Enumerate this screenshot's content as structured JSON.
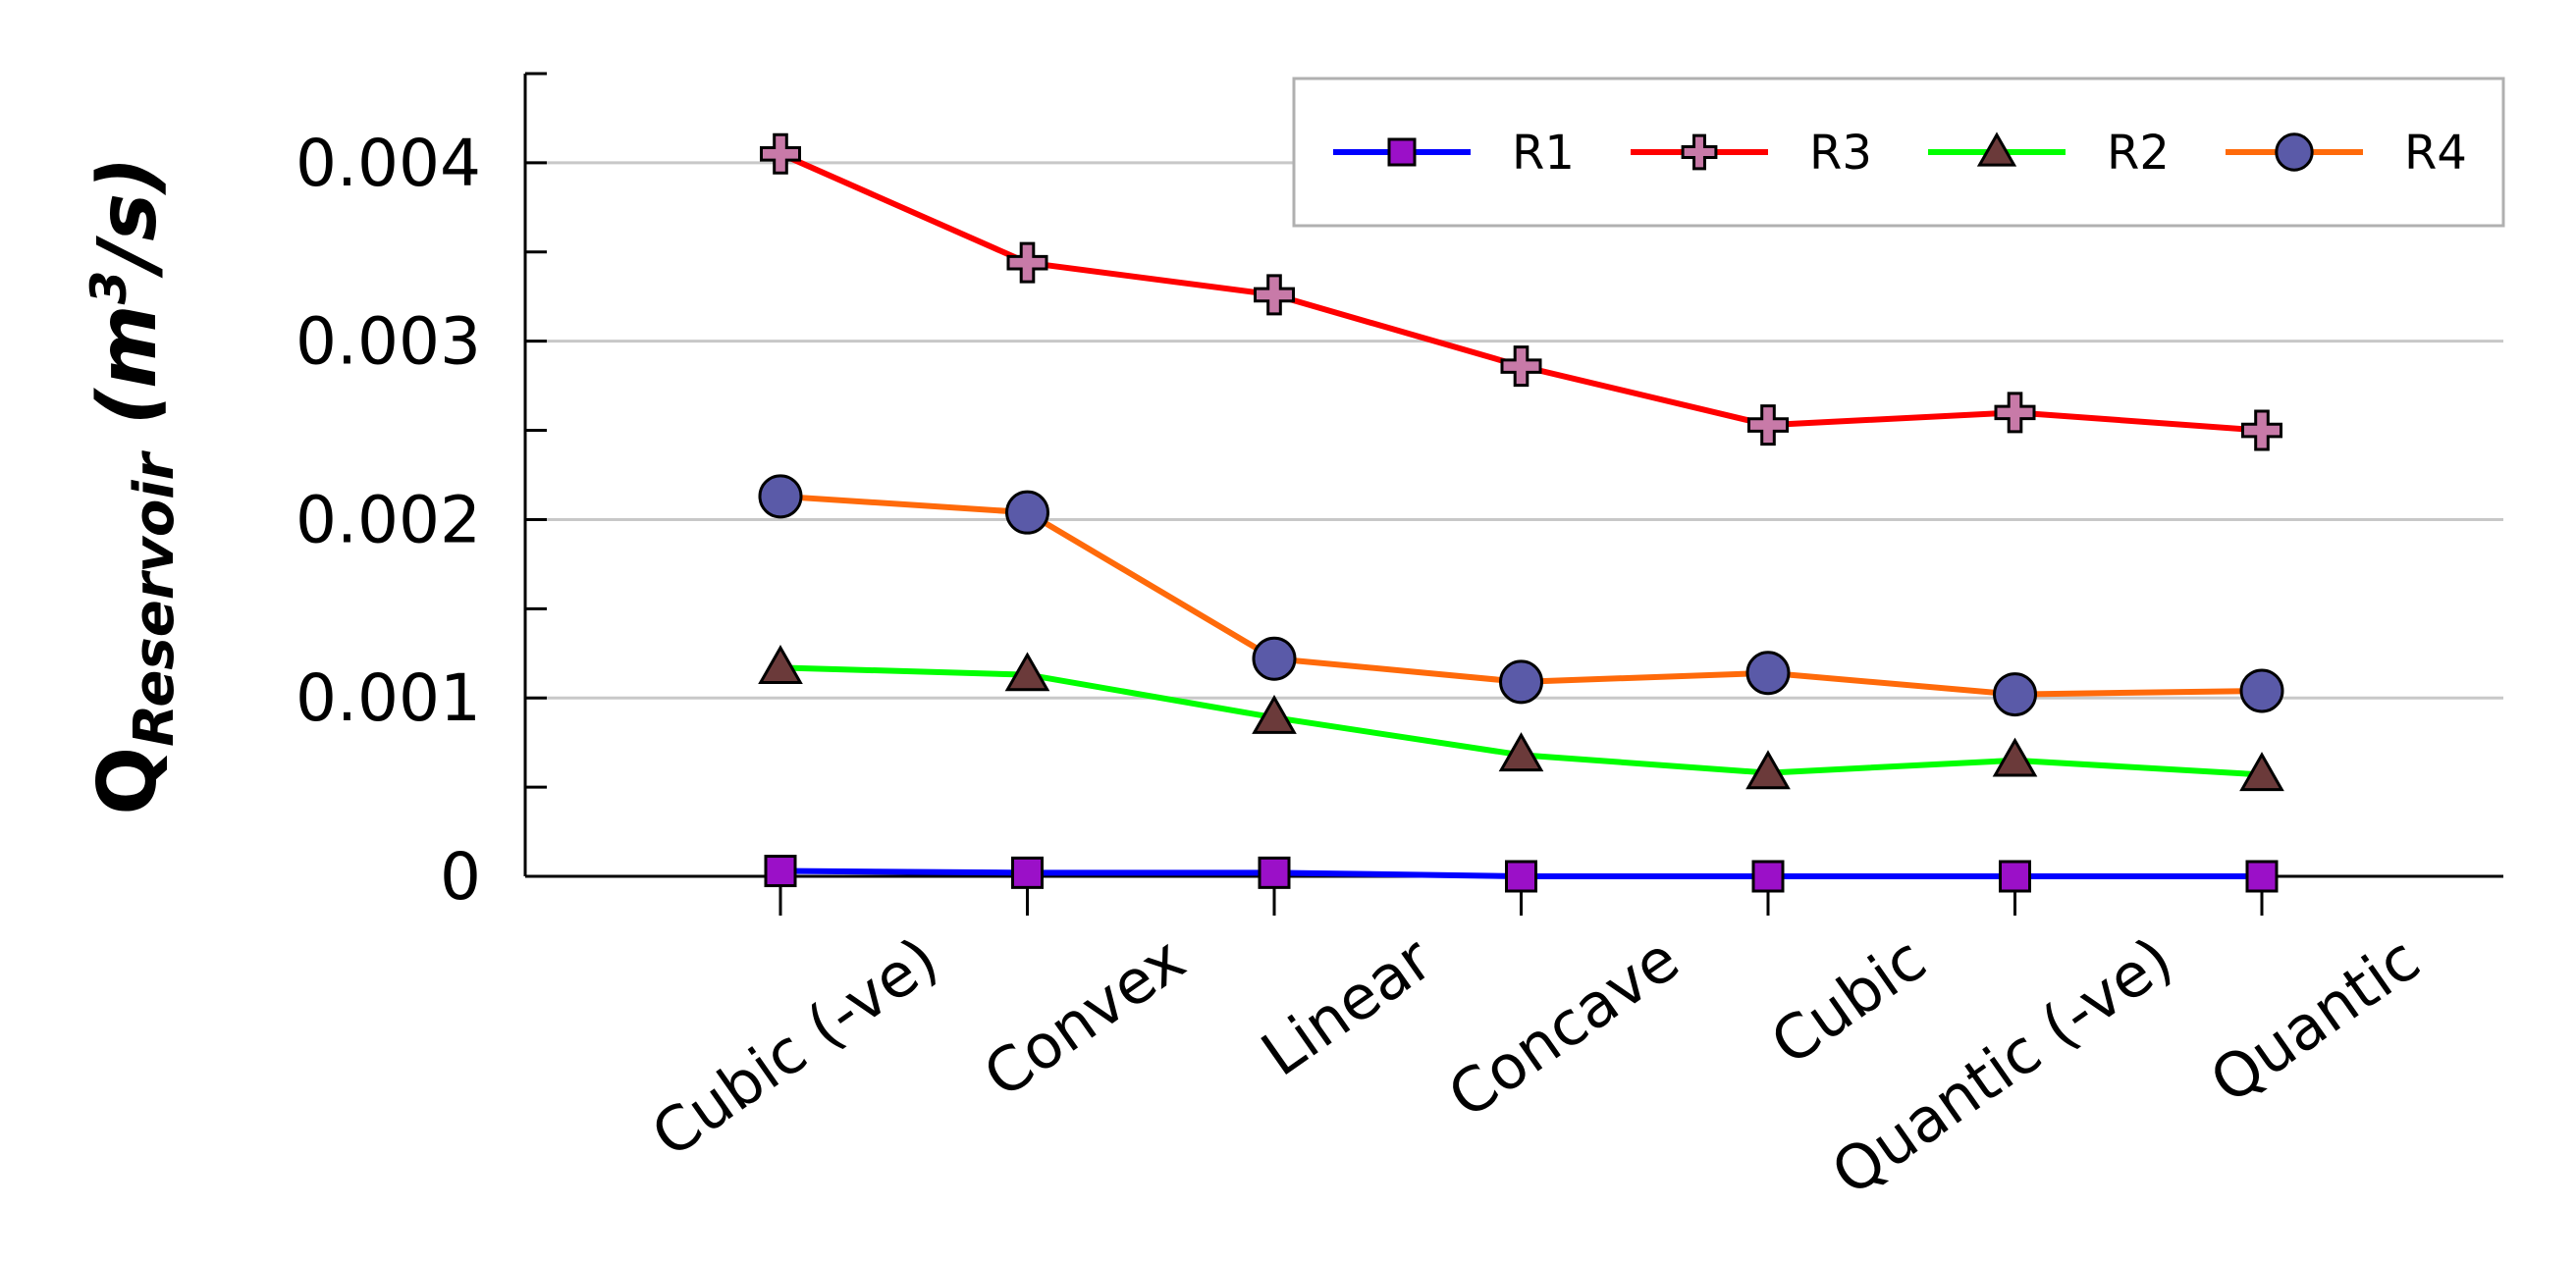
{
  "chart_data": {
    "type": "line",
    "title": "",
    "xlabel": "",
    "ylabel": {
      "main": "Q",
      "subscript": "Reservoir",
      "units_prefix": " (m",
      "units_superscript": "3",
      "units_suffix": "/s)"
    },
    "categories": [
      "Cubic (-ve)",
      "Convex",
      "Linear",
      "Concave",
      "Cubic",
      "Quantic (-ve)",
      "Quantic"
    ],
    "ylim": [
      0,
      0.0045
    ],
    "yticks": [
      0,
      0.001,
      0.002,
      0.003,
      0.004
    ],
    "ytick_labels": [
      "0",
      "0.001",
      "0.002",
      "0.003",
      "0.004"
    ],
    "grid": true,
    "legend_position": "top-right",
    "legend_order": [
      "R1",
      "R3",
      "R2",
      "R4"
    ],
    "series": [
      {
        "name": "R1",
        "color": "#0000ff",
        "marker": "square",
        "marker_fill": "#9b10c8",
        "values": [
          3e-05,
          2e-05,
          2e-05,
          0.0,
          0.0,
          0.0,
          0.0
        ]
      },
      {
        "name": "R2",
        "color": "#00ff00",
        "marker": "triangle",
        "marker_fill": "#6b3a3a",
        "values": [
          0.00117,
          0.00113,
          0.00089,
          0.00068,
          0.00058,
          0.00065,
          0.00057
        ]
      },
      {
        "name": "R3",
        "color": "#ff0000",
        "marker": "plus",
        "marker_fill": "#c87aa8",
        "values": [
          0.00405,
          0.00344,
          0.00326,
          0.00286,
          0.00253,
          0.0026,
          0.0025
        ]
      },
      {
        "name": "R4",
        "color": "#ff6a0a",
        "marker": "circle",
        "marker_fill": "#5a5aa8",
        "values": [
          0.00213,
          0.00204,
          0.00122,
          0.00109,
          0.00114,
          0.00102,
          0.00104
        ]
      }
    ]
  }
}
